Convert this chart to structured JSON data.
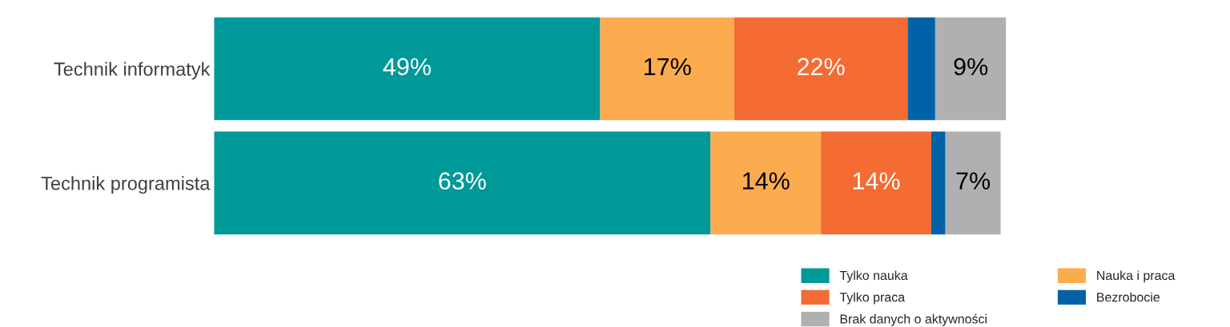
{
  "chart_data": {
    "type": "bar",
    "orientation": "horizontal",
    "stacked": true,
    "categories": [
      "Technik informatyk",
      "Technik programista"
    ],
    "series": [
      {
        "name": "Tylko nauka",
        "color": "#009999",
        "values": [
          49,
          63
        ],
        "value_labels": [
          "49%",
          "63%"
        ]
      },
      {
        "name": "Nauka i praca",
        "color": "#fdab4f",
        "values": [
          17,
          14
        ],
        "value_labels": [
          "17%",
          "14%"
        ]
      },
      {
        "name": "Tylko praca",
        "color": "#f46b33",
        "values": [
          22,
          14
        ],
        "value_labels": [
          "22%",
          "14%"
        ]
      },
      {
        "name": "Bezrobocie",
        "color": "#0062a8",
        "values": [
          3.5,
          1.8
        ],
        "value_labels": [
          null,
          null
        ]
      },
      {
        "name": "Brak danych o aktywności",
        "color": "#b0b0b0",
        "values": [
          9,
          7
        ],
        "value_labels": [
          "9%",
          "7%"
        ]
      }
    ],
    "legend": "bottom right"
  }
}
